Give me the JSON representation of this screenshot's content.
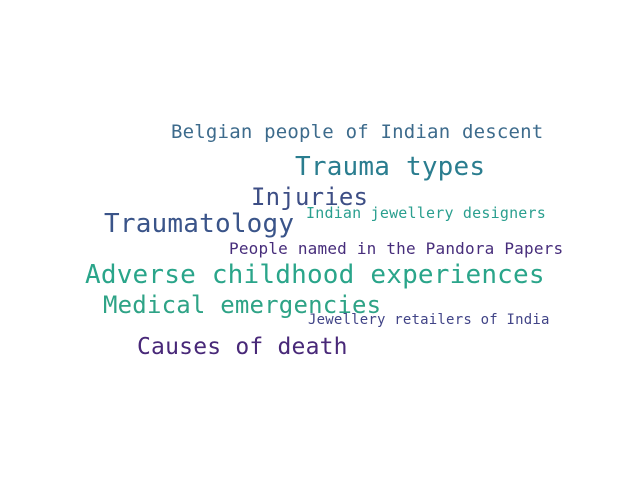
{
  "words": [
    {
      "text": "Belgian people of Indian descent",
      "color": "#3d6b8c"
    },
    {
      "text": "Trauma types",
      "color": "#2a7d8f"
    },
    {
      "text": "Injuries",
      "color": "#3d4e85"
    },
    {
      "text": "Traumatology",
      "color": "#3a5489"
    },
    {
      "text": "Indian jewellery designers",
      "color": "#2a9f8f"
    },
    {
      "text": "People named in the Pandora Papers",
      "color": "#472d7b"
    },
    {
      "text": "Adverse childhood experiences",
      "color": "#2aa58a"
    },
    {
      "text": "Medical emergencies",
      "color": "#2ea386"
    },
    {
      "text": "Jewellery retailers of India",
      "color": "#414487"
    },
    {
      "text": "Causes of death",
      "color": "#482878"
    }
  ]
}
